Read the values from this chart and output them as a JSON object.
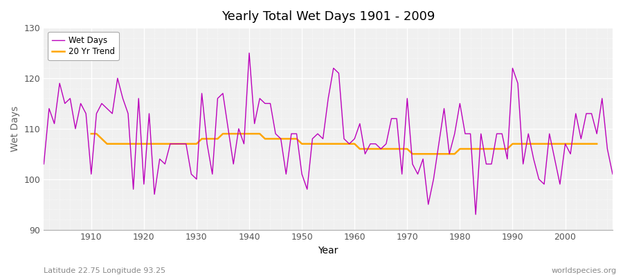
{
  "title": "Yearly Total Wet Days 1901 - 2009",
  "xlabel": "Year",
  "ylabel": "Wet Days",
  "xlim": [
    1901,
    2009
  ],
  "ylim": [
    90,
    130
  ],
  "yticks": [
    90,
    100,
    110,
    120,
    130
  ],
  "xticks": [
    1910,
    1920,
    1930,
    1940,
    1950,
    1960,
    1970,
    1980,
    1990,
    2000
  ],
  "bg_color": "#ffffff",
  "plot_bg_color": "#f0f0f0",
  "grid_color": "#ffffff",
  "wet_days_color": "#bb00bb",
  "trend_color": "#ffa500",
  "footnote_left": "Latitude 22.75 Longitude 93.25",
  "footnote_right": "worldspecies.org",
  "legend_labels": [
    "Wet Days",
    "20 Yr Trend"
  ],
  "years": [
    1901,
    1902,
    1903,
    1904,
    1905,
    1906,
    1907,
    1908,
    1909,
    1910,
    1911,
    1912,
    1913,
    1914,
    1915,
    1916,
    1917,
    1918,
    1919,
    1920,
    1921,
    1922,
    1923,
    1924,
    1925,
    1926,
    1927,
    1928,
    1929,
    1930,
    1931,
    1932,
    1933,
    1934,
    1935,
    1936,
    1937,
    1938,
    1939,
    1940,
    1941,
    1942,
    1943,
    1944,
    1945,
    1946,
    1947,
    1948,
    1949,
    1950,
    1951,
    1952,
    1953,
    1954,
    1955,
    1956,
    1957,
    1958,
    1959,
    1960,
    1961,
    1962,
    1963,
    1964,
    1965,
    1966,
    1967,
    1968,
    1969,
    1970,
    1971,
    1972,
    1973,
    1974,
    1975,
    1976,
    1977,
    1978,
    1979,
    1980,
    1981,
    1982,
    1983,
    1984,
    1985,
    1986,
    1987,
    1988,
    1989,
    1990,
    1991,
    1992,
    1993,
    1994,
    1995,
    1996,
    1997,
    1998,
    1999,
    2000,
    2001,
    2002,
    2003,
    2004,
    2005,
    2006,
    2007,
    2008,
    2009
  ],
  "wet_days": [
    103,
    114,
    111,
    119,
    115,
    116,
    110,
    115,
    113,
    101,
    113,
    115,
    114,
    113,
    120,
    116,
    113,
    98,
    116,
    99,
    113,
    97,
    104,
    103,
    107,
    107,
    107,
    107,
    101,
    100,
    117,
    107,
    101,
    116,
    117,
    110,
    103,
    110,
    107,
    125,
    111,
    116,
    115,
    115,
    109,
    108,
    101,
    109,
    109,
    101,
    98,
    108,
    109,
    108,
    116,
    122,
    121,
    108,
    107,
    108,
    111,
    105,
    107,
    107,
    106,
    107,
    112,
    112,
    101,
    116,
    103,
    101,
    104,
    95,
    100,
    107,
    114,
    105,
    109,
    115,
    109,
    109,
    93,
    109,
    103,
    103,
    109,
    109,
    104,
    122,
    119,
    103,
    109,
    104,
    100,
    99,
    109,
    104,
    99,
    107,
    105,
    113,
    108,
    113,
    113,
    109,
    116,
    106,
    101
  ],
  "trend": [
    null,
    null,
    null,
    null,
    null,
    null,
    null,
    null,
    null,
    109,
    109,
    108,
    107,
    107,
    107,
    107,
    107,
    107,
    107,
    107,
    107,
    107,
    107,
    107,
    107,
    107,
    107,
    107,
    107,
    107,
    108,
    108,
    108,
    108,
    109,
    109,
    109,
    109,
    109,
    109,
    109,
    109,
    108,
    108,
    108,
    108,
    108,
    108,
    108,
    107,
    107,
    107,
    107,
    107,
    107,
    107,
    107,
    107,
    107,
    107,
    106,
    106,
    106,
    106,
    106,
    106,
    106,
    106,
    106,
    106,
    105,
    105,
    105,
    105,
    105,
    105,
    105,
    105,
    105,
    106,
    106,
    106,
    106,
    106,
    106,
    106,
    106,
    106,
    106,
    107,
    107,
    107,
    107,
    107,
    107,
    107,
    107,
    107,
    107,
    107,
    107,
    107,
    107,
    107,
    107,
    107,
    null,
    null,
    null
  ]
}
